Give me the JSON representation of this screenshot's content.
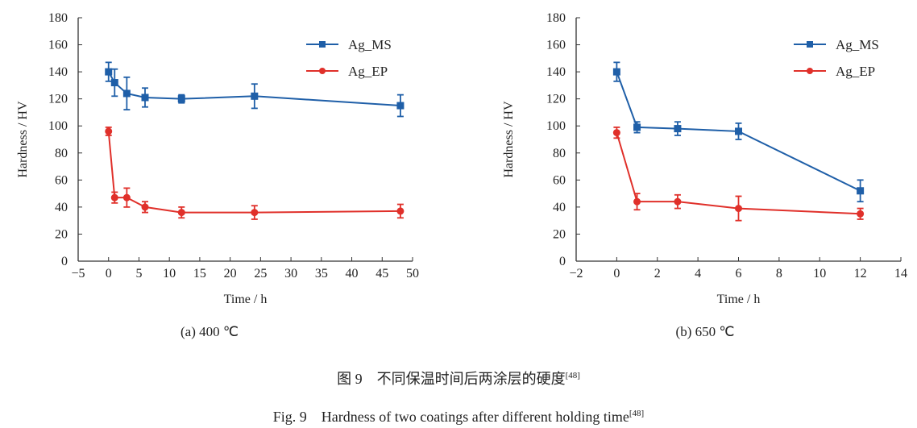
{
  "chart_data": [
    {
      "type": "line",
      "subtitle": "(a) 400 ℃",
      "xlabel": "Time / h",
      "ylabel": "Hardness / HV",
      "xlim": [
        -5,
        50
      ],
      "ylim": [
        0,
        180
      ],
      "xticks": [
        -5,
        0,
        5,
        10,
        15,
        20,
        25,
        30,
        35,
        40,
        45,
        50
      ],
      "yticks": [
        0,
        20,
        40,
        60,
        80,
        100,
        120,
        140,
        160,
        180
      ],
      "legend": "top-right",
      "series": [
        {
          "name": "Ag_MS",
          "color": "#1f5fa8",
          "marker": "square",
          "x": [
            0,
            1,
            3,
            6,
            12,
            24,
            48
          ],
          "y": [
            140,
            132,
            124,
            121,
            120,
            122,
            115
          ],
          "err": [
            7,
            10,
            12,
            7,
            3,
            9,
            8
          ]
        },
        {
          "name": "Ag_EP",
          "color": "#e0302a",
          "marker": "circle",
          "x": [
            0,
            1,
            3,
            6,
            12,
            24,
            48
          ],
          "y": [
            96,
            47,
            47,
            40,
            36,
            36,
            37
          ],
          "err": [
            3,
            4,
            7,
            4,
            4,
            5,
            5
          ]
        }
      ]
    },
    {
      "type": "line",
      "subtitle": "(b) 650 ℃",
      "xlabel": "Time / h",
      "ylabel": "Hardness / HV",
      "xlim": [
        -2,
        14
      ],
      "ylim": [
        0,
        180
      ],
      "xticks": [
        -2,
        0,
        2,
        4,
        6,
        8,
        10,
        12,
        14
      ],
      "yticks": [
        0,
        20,
        40,
        60,
        80,
        100,
        120,
        140,
        160,
        180
      ],
      "legend": "top-right",
      "series": [
        {
          "name": "Ag_MS",
          "color": "#1f5fa8",
          "marker": "square",
          "x": [
            0,
            1,
            3,
            6,
            12
          ],
          "y": [
            140,
            99,
            98,
            96,
            52
          ],
          "err": [
            7,
            4,
            5,
            6,
            8
          ]
        },
        {
          "name": "Ag_EP",
          "color": "#e0302a",
          "marker": "circle",
          "x": [
            0,
            1,
            3,
            6,
            12
          ],
          "y": [
            95,
            44,
            44,
            39,
            35
          ],
          "err": [
            4,
            6,
            5,
            9,
            4
          ]
        }
      ]
    }
  ],
  "caption": {
    "cn": "图 9　不同保温时间后两涂层的硬度",
    "en": "Fig. 9　Hardness of two coatings after different holding time",
    "ref": "[48]"
  }
}
